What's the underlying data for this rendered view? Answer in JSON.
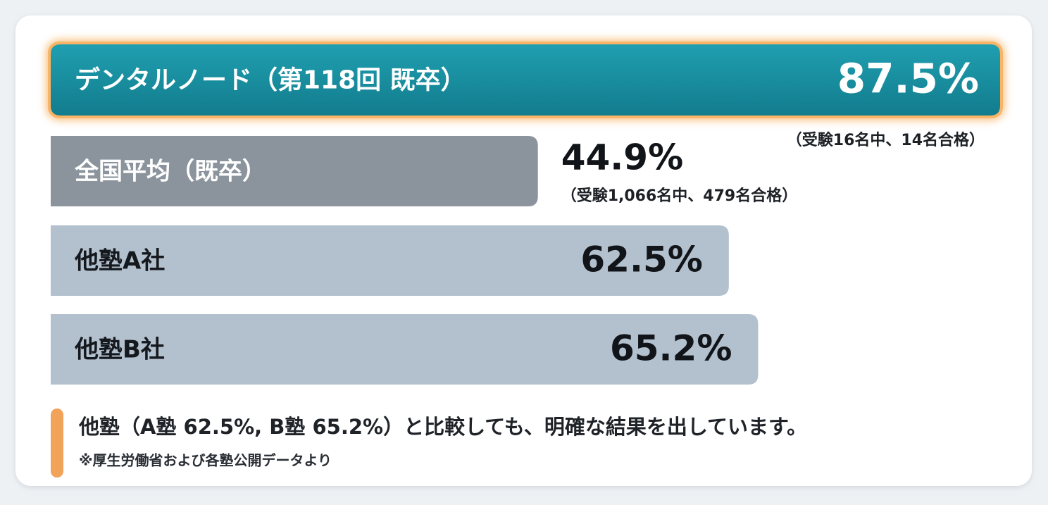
{
  "chart_data": {
    "type": "bar",
    "orientation": "horizontal",
    "categories": [
      "デンタルノード（第118回 既卒）",
      "全国平均（既卒）",
      "他塾A社",
      "他塾B社"
    ],
    "values": [
      87.5,
      44.9,
      62.5,
      65.2
    ],
    "value_labels": [
      "87.5%",
      "44.9%",
      "62.5%",
      "65.2%"
    ],
    "notes": [
      "（受験16名中、14名合格）",
      "（受験1,066名中、479名合格）",
      null,
      null
    ],
    "colors": [
      "#16899b",
      "#8b949d",
      "#b3c0ce",
      "#b3c0ce"
    ],
    "footnote": "他塾（A塾 62.5%, B塾 65.2%）と比較しても、明確な結果を出しています。",
    "source": "※厚生労働省および各塾公開データより"
  }
}
